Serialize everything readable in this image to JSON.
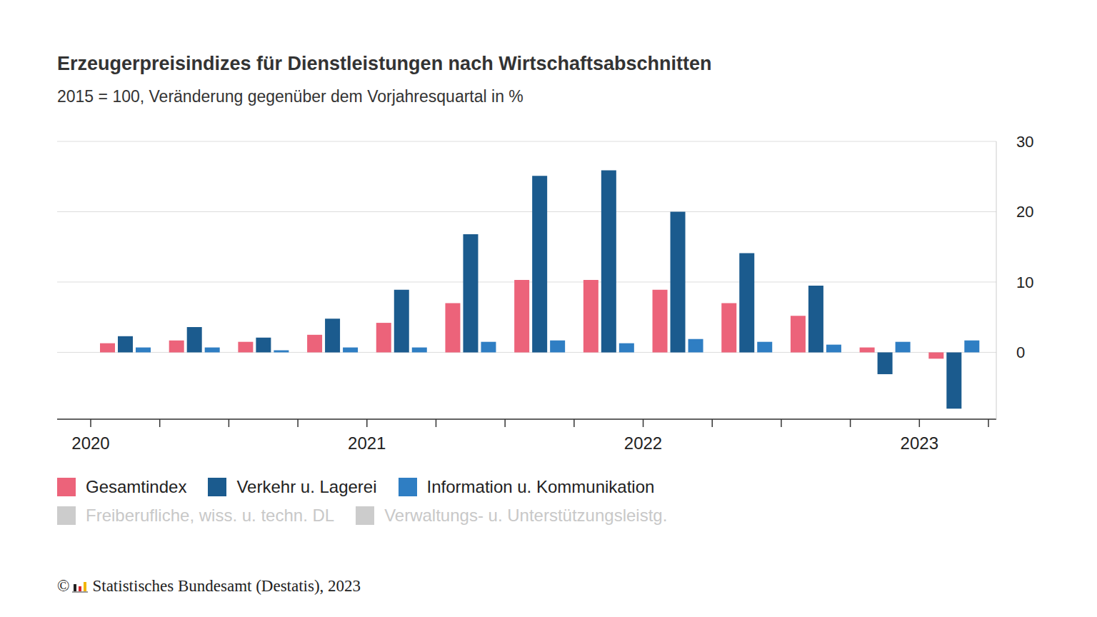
{
  "chart_data": {
    "type": "bar",
    "title": "Erzeugerpreisindizes für Dienstleistungen nach Wirtschaftsabschnitten",
    "subtitle": "2015 = 100, Veränderung gegenüber dem Vorjahresquartal in %",
    "categories": [
      "2020",
      null,
      null,
      null,
      "2021",
      null,
      null,
      null,
      "2022",
      null,
      null,
      null,
      "2023"
    ],
    "series": [
      {
        "name": "Gesamtindex",
        "color": "#ec637a",
        "values": [
          1.3,
          1.7,
          1.5,
          2.5,
          4.2,
          7.0,
          10.3,
          10.3,
          8.9,
          7.0,
          5.2,
          0.7,
          -0.9
        ]
      },
      {
        "name": "Verkehr u. Lagerei",
        "color": "#1b5b8e",
        "values": [
          2.3,
          3.6,
          2.1,
          4.8,
          8.9,
          16.8,
          25.1,
          25.9,
          20.0,
          14.1,
          9.5,
          -3.1,
          -8.0
        ]
      },
      {
        "name": "Information u. Kommunikation",
        "color": "#2f7ec3",
        "values": [
          0.7,
          0.7,
          0.3,
          0.7,
          0.7,
          1.5,
          1.7,
          1.3,
          1.9,
          1.5,
          1.1,
          1.5,
          1.7
        ]
      },
      {
        "name": "Freiberufliche, wiss. u. techn. DL",
        "color": "#cccccc",
        "values": [
          null,
          null,
          null,
          null,
          null,
          null,
          null,
          null,
          null,
          null,
          null,
          null,
          null
        ]
      },
      {
        "name": "Verwaltungs- u. Unterstützungsleistg.",
        "color": "#cccccc",
        "values": [
          null,
          null,
          null,
          null,
          null,
          null,
          null,
          null,
          null,
          null,
          null,
          null,
          null
        ]
      }
    ],
    "ylim": [
      -9.5,
      30
    ],
    "yticks": [
      0,
      10,
      20,
      30
    ],
    "grid": true,
    "legend": "bottom"
  },
  "copyright": "©",
  "source": "Statistisches Bundesamt (Destatis), 2023"
}
